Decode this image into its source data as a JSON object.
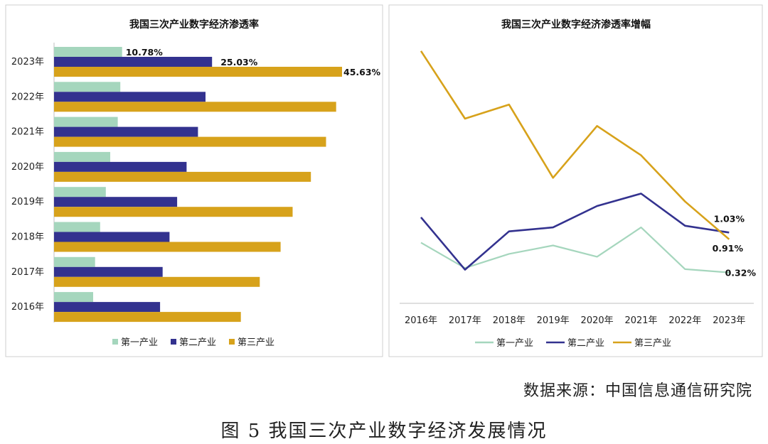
{
  "figure": {
    "source_label": "数据来源：中国信息通信研究院",
    "caption": "图 5  我国三次产业数字经济发展情况"
  },
  "colors": {
    "primary": "#a5d6bd",
    "secondary": "#33328f",
    "tertiary": "#d7a21b",
    "frame": "#cfcfcf",
    "axis": "#bfbfbf"
  },
  "chart_data": [
    {
      "type": "bar",
      "orientation": "horizontal",
      "title": "我国三次产业数字经济渗透率",
      "unit": "%",
      "categories": [
        "2023年",
        "2022年",
        "2021年",
        "2020年",
        "2019年",
        "2018年",
        "2017年",
        "2016年"
      ],
      "xlim": [
        0,
        50
      ],
      "series": [
        {
          "name": "第一产业",
          "values": [
            10.78,
            10.5,
            10.1,
            8.9,
            8.2,
            7.3,
            6.5,
            6.2
          ]
        },
        {
          "name": "第二产业",
          "values": [
            25.03,
            24.0,
            22.8,
            21.0,
            19.5,
            18.3,
            17.2,
            16.8
          ]
        },
        {
          "name": "第三产业",
          "values": [
            45.63,
            44.7,
            43.1,
            40.7,
            37.8,
            35.9,
            32.6,
            29.6
          ]
        }
      ],
      "data_labels": [
        {
          "category": "2023年",
          "series": "第一产业",
          "text": "10.78%"
        },
        {
          "category": "2023年",
          "series": "第二产业",
          "text": "25.03%"
        },
        {
          "category": "2023年",
          "series": "第三产业",
          "text": "45.63%"
        }
      ],
      "legend": [
        "第一产业",
        "第二产业",
        "第三产业"
      ],
      "legend_position": "bottom"
    },
    {
      "type": "line",
      "title": "我国三次产业数字经济渗透率增幅",
      "unit": "%",
      "x": [
        "2016年",
        "2017年",
        "2018年",
        "2019年",
        "2020年",
        "2021年",
        "2022年",
        "2023年"
      ],
      "ylim": [
        0.0,
        4.5
      ],
      "series": [
        {
          "name": "第一产业",
          "values": [
            0.85,
            0.4,
            0.65,
            0.8,
            0.6,
            1.12,
            0.38,
            0.32
          ]
        },
        {
          "name": "第二产业",
          "values": [
            1.3,
            0.37,
            1.05,
            1.12,
            1.5,
            1.72,
            1.15,
            1.03
          ]
        },
        {
          "name": "第三产业",
          "values": [
            4.25,
            3.05,
            3.3,
            2.0,
            2.92,
            2.4,
            1.58,
            0.91
          ]
        }
      ],
      "data_labels": [
        {
          "series": "第二产业",
          "text": "1.03%"
        },
        {
          "series": "第三产业",
          "text": "0.91%"
        },
        {
          "series": "第一产业",
          "text": "0.32%"
        }
      ],
      "legend": [
        "第一产业",
        "第二产业",
        "第三产业"
      ],
      "legend_position": "bottom"
    }
  ]
}
